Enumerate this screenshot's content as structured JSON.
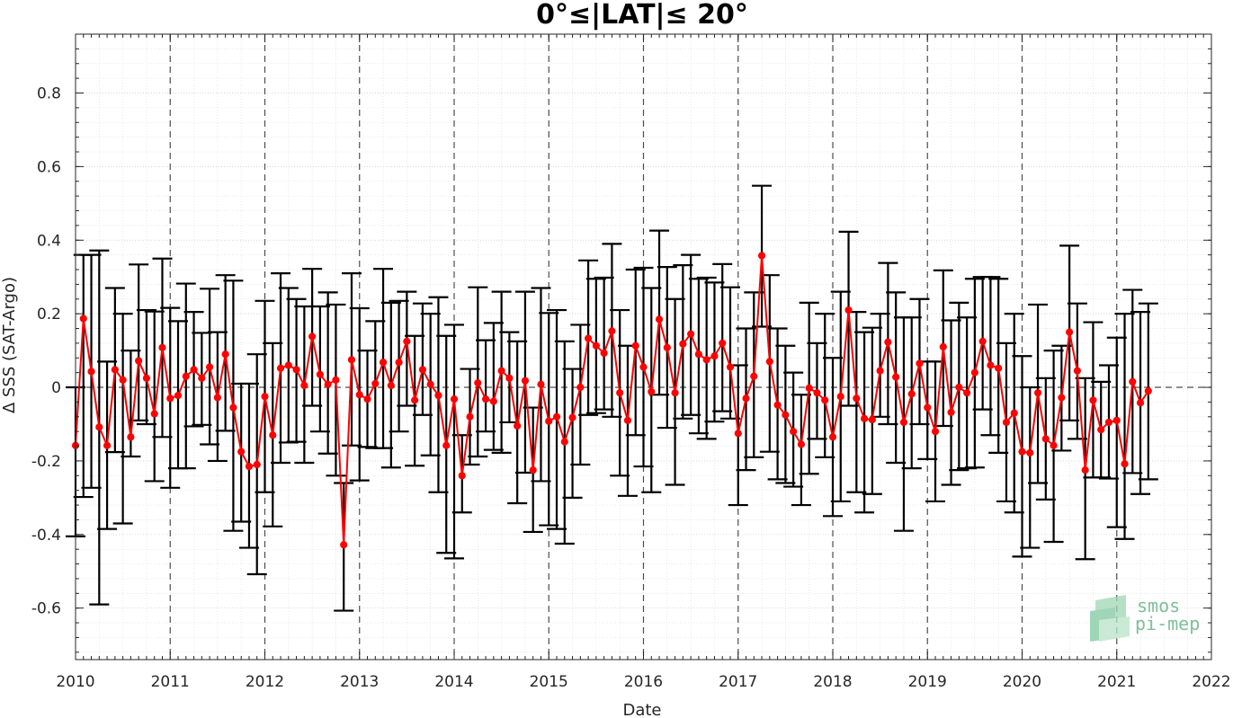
{
  "chart_data": {
    "type": "line",
    "title": "0°≤|LAT|≤ 20°",
    "xlabel": "Date",
    "ylabel": "Δ SSS (SAT-Argo)",
    "xlim": [
      "2010-01-01",
      "2022-01-01"
    ],
    "ylim": [
      -0.74,
      0.96
    ],
    "x_tick_labels": [
      "2010",
      "2011",
      "2012",
      "2013",
      "2014",
      "2015",
      "2016",
      "2017",
      "2018",
      "2019",
      "2020",
      "2021",
      "2022"
    ],
    "y_ticks": [
      -0.6,
      -0.4,
      -0.2,
      0,
      0.2,
      0.4,
      0.6,
      0.8
    ],
    "y_tick_labels": [
      "-0.6",
      "-0.4",
      "-0.2",
      "0",
      "0.2",
      "0.4",
      "0.6",
      "0.8"
    ],
    "grid": true,
    "year_reference_lines": "dashed vertical line at each year start",
    "zero_reference_line": "dashed horizontal line at 0",
    "series": [
      {
        "color": "#ff0000",
        "errorbar_color": "#000000",
        "start_month": "2010-01",
        "values": [
          -0.158,
          0.187,
          0.043,
          -0.108,
          -0.158,
          0.048,
          0.02,
          -0.135,
          0.072,
          0.025,
          -0.072,
          0.108,
          -0.03,
          -0.022,
          0.03,
          0.048,
          0.025,
          0.055,
          -0.028,
          0.09,
          -0.055,
          -0.175,
          -0.215,
          -0.21,
          -0.025,
          -0.13,
          0.052,
          0.06,
          0.048,
          0.005,
          0.138,
          0.035,
          0.008,
          0.02,
          -0.428,
          0.075,
          -0.02,
          -0.032,
          0.01,
          0.068,
          0.005,
          0.068,
          0.125,
          -0.035,
          0.048,
          0.008,
          -0.022,
          -0.158,
          -0.032,
          -0.24,
          -0.08,
          0.012,
          -0.032,
          -0.038,
          0.045,
          0.025,
          -0.105,
          0.018,
          -0.225,
          0.008,
          -0.092,
          -0.08,
          -0.148,
          -0.082,
          0.0,
          0.133,
          0.113,
          0.093,
          0.153,
          -0.015,
          -0.09,
          0.113,
          0.055,
          -0.012,
          0.185,
          0.108,
          -0.015,
          0.118,
          0.145,
          0.09,
          0.075,
          0.085,
          0.12,
          0.055,
          -0.125,
          -0.03,
          0.03,
          0.358,
          0.07,
          -0.048,
          -0.075,
          -0.12,
          -0.155,
          -0.002,
          -0.015,
          -0.035,
          -0.135,
          -0.025,
          0.21,
          -0.03,
          -0.085,
          -0.088,
          0.045,
          0.123,
          0.028,
          -0.095,
          -0.018,
          0.065,
          -0.055,
          -0.12,
          0.11,
          -0.068,
          0.0,
          -0.015,
          0.04,
          0.125,
          0.06,
          0.052,
          -0.095,
          -0.07,
          -0.175,
          -0.178,
          -0.015,
          -0.14,
          -0.158,
          -0.028,
          0.15,
          0.045,
          -0.225,
          -0.035,
          -0.115,
          -0.095,
          -0.09,
          -0.208,
          0.015,
          -0.042,
          -0.01
        ],
        "error_lower": [
          -0.405,
          -0.298,
          -0.273,
          -0.59,
          -0.385,
          -0.176,
          -0.37,
          -0.188,
          -0.09,
          -0.1,
          -0.255,
          -0.135,
          -0.273,
          -0.22,
          -0.22,
          -0.106,
          -0.102,
          -0.155,
          -0.2,
          -0.118,
          -0.39,
          -0.365,
          -0.436,
          -0.508,
          -0.285,
          -0.378,
          -0.205,
          -0.15,
          -0.148,
          -0.205,
          -0.05,
          -0.12,
          -0.18,
          -0.24,
          -0.607,
          -0.158,
          -0.253,
          -0.162,
          -0.165,
          -0.165,
          -0.218,
          -0.12,
          -0.05,
          -0.213,
          -0.075,
          -0.185,
          -0.285,
          -0.45,
          -0.465,
          -0.34,
          -0.21,
          -0.188,
          -0.12,
          -0.17,
          -0.178,
          -0.095,
          -0.315,
          -0.232,
          -0.393,
          -0.255,
          -0.375,
          -0.385,
          -0.425,
          -0.3,
          -0.21,
          -0.075,
          -0.07,
          -0.06,
          -0.08,
          -0.24,
          -0.295,
          -0.13,
          -0.215,
          -0.285,
          -0.02,
          -0.11,
          -0.265,
          -0.085,
          -0.075,
          -0.125,
          -0.14,
          -0.093,
          -0.065,
          -0.085,
          -0.32,
          -0.225,
          -0.19,
          0.165,
          -0.175,
          -0.25,
          -0.26,
          -0.27,
          -0.32,
          -0.235,
          -0.14,
          -0.19,
          -0.35,
          -0.31,
          -0.05,
          -0.285,
          -0.34,
          -0.29,
          -0.08,
          -0.1,
          -0.205,
          -0.39,
          -0.22,
          -0.1,
          -0.195,
          -0.31,
          -0.105,
          -0.265,
          -0.225,
          -0.22,
          -0.218,
          -0.06,
          -0.13,
          -0.178,
          -0.31,
          -0.34,
          -0.46,
          -0.436,
          -0.26,
          -0.305,
          -0.42,
          -0.172,
          -0.09,
          -0.14,
          -0.467,
          -0.245,
          -0.245,
          -0.248,
          -0.38,
          -0.412,
          -0.233,
          -0.29,
          -0.25
        ],
        "error_upper": [
          0.0,
          0.36,
          0.36,
          0.372,
          0.07,
          0.27,
          0.2,
          0.1,
          0.334,
          0.21,
          0.206,
          0.35,
          0.216,
          0.18,
          0.282,
          0.205,
          0.148,
          0.268,
          0.15,
          0.305,
          0.29,
          0.01,
          0.01,
          0.09,
          0.235,
          0.12,
          0.31,
          0.27,
          0.24,
          0.22,
          0.322,
          0.22,
          0.258,
          0.225,
          -0.26,
          0.31,
          0.215,
          0.1,
          0.18,
          0.322,
          0.23,
          0.235,
          0.26,
          0.14,
          0.228,
          0.2,
          0.245,
          0.14,
          0.17,
          -0.13,
          0.05,
          0.272,
          0.128,
          0.175,
          0.26,
          0.15,
          0.125,
          0.26,
          -0.055,
          0.27,
          0.202,
          0.21,
          0.125,
          0.05,
          0.17,
          0.345,
          0.295,
          0.298,
          0.39,
          0.21,
          0.113,
          0.32,
          0.325,
          0.27,
          0.426,
          0.327,
          0.24,
          0.332,
          0.36,
          0.295,
          0.298,
          0.285,
          0.335,
          0.272,
          0.06,
          0.16,
          0.258,
          0.548,
          0.305,
          0.16,
          0.113,
          0.04,
          -0.02,
          0.23,
          0.12,
          0.2,
          0.08,
          0.26,
          0.423,
          0.205,
          0.15,
          0.162,
          0.2,
          0.338,
          0.258,
          0.19,
          0.19,
          0.24,
          0.07,
          0.07,
          0.318,
          0.182,
          0.23,
          0.19,
          0.295,
          0.3,
          0.3,
          0.295,
          0.12,
          0.2,
          0.085,
          0.0,
          0.225,
          0.025,
          0.1,
          0.113,
          0.385,
          0.228,
          0.025,
          0.177,
          0.015,
          0.06,
          0.135,
          0.2,
          0.265,
          0.205,
          0.228
        ]
      }
    ],
    "logo_text": [
      "smos",
      "pi-mep"
    ],
    "colors": {
      "series": "#ff0000",
      "errorbars": "#000000",
      "logo": "#7fbf9a"
    }
  }
}
